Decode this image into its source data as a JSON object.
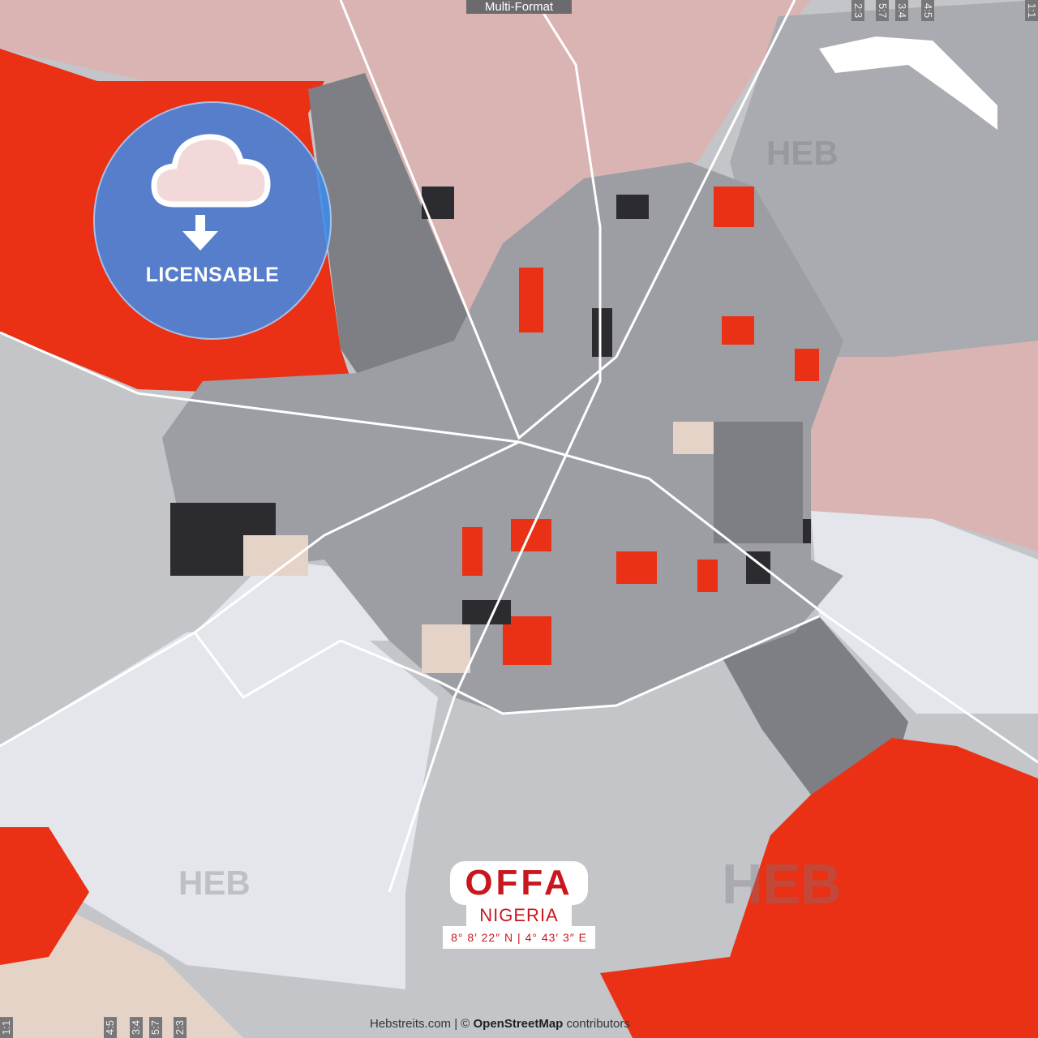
{
  "header": {
    "format_label": "Multi-Format"
  },
  "ratios_top": [
    "2:3",
    "5:7",
    "3:4",
    "4:5",
    "1:1"
  ],
  "ratios_bottom": [
    "1:1",
    "4:5",
    "3:4",
    "5:7",
    "2:3"
  ],
  "badge": {
    "label": "LICENSABLE",
    "icon": "cloud-download-icon"
  },
  "title": {
    "city": "OFFA",
    "country": "NIGERIA",
    "coordinates": "8° 8′ 22″ N | 4° 43′ 3″ E"
  },
  "credits": {
    "site": "Hebstreits.com",
    "separator": " | © ",
    "osm": "OpenStreetMap",
    "suffix": " contributors"
  },
  "watermark": "HEB",
  "colors": {
    "red": "#ea3015",
    "pink": "#d9b4b3",
    "light": "#e4e6ec",
    "gray": "#c3c5c9",
    "dark": "#7e7f85",
    "black": "#2c2c30",
    "beige": "#e6d3c8",
    "text_red": "#c8171f"
  }
}
